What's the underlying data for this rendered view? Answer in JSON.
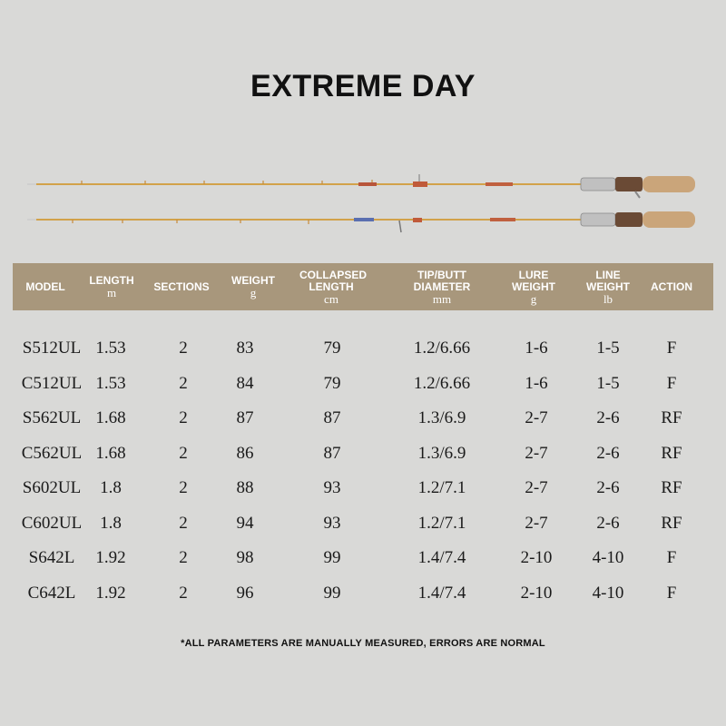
{
  "title": "EXTREME DAY",
  "colors": {
    "background": "#d9d9d7",
    "header_bg": "#a8977c",
    "blank": "#d2a24a",
    "cork": "#caa57a",
    "reel_seat": "#c0c0c0"
  },
  "rod_image": {
    "icon": "fishing-rod-icon",
    "count": 2
  },
  "table": {
    "headers": [
      {
        "label": "MODEL",
        "unit": ""
      },
      {
        "label": "LENGTH",
        "unit": "m"
      },
      {
        "label": "SECTIONS",
        "unit": ""
      },
      {
        "label": "WEIGHT",
        "unit": "g"
      },
      {
        "label": "COLLAPSED LENGTH",
        "unit": "cm"
      },
      {
        "label": "TIP/BUTT DIAMETER",
        "unit": "mm"
      },
      {
        "label": "LURE WEIGHT",
        "unit": "g"
      },
      {
        "label": "LINE WEIGHT",
        "unit": "lb"
      },
      {
        "label": "ACTION",
        "unit": ""
      }
    ],
    "rows": [
      [
        "S512UL",
        "1.53",
        "2",
        "83",
        "79",
        "1.2/6.66",
        "1-6",
        "1-5",
        "F"
      ],
      [
        "C512UL",
        "1.53",
        "2",
        "84",
        "79",
        "1.2/6.66",
        "1-6",
        "1-5",
        "F"
      ],
      [
        "S562UL",
        "1.68",
        "2",
        "87",
        "87",
        "1.3/6.9",
        "2-7",
        "2-6",
        "RF"
      ],
      [
        "C562UL",
        "1.68",
        "2",
        "86",
        "87",
        "1.3/6.9",
        "2-7",
        "2-6",
        "RF"
      ],
      [
        "S602UL",
        "1.8",
        "2",
        "88",
        "93",
        "1.2/7.1",
        "2-7",
        "2-6",
        "RF"
      ],
      [
        "C602UL",
        "1.8",
        "2",
        "94",
        "93",
        "1.2/7.1",
        "2-7",
        "2-6",
        "RF"
      ],
      [
        "S642L",
        "1.92",
        "2",
        "98",
        "99",
        "1.4/7.4",
        "2-10",
        "4-10",
        "F"
      ],
      [
        "C642L",
        "1.92",
        "2",
        "96",
        "99",
        "1.4/7.4",
        "2-10",
        "4-10",
        "F"
      ]
    ]
  },
  "footnote": "*ALL PARAMETERS ARE MANUALLY MEASURED, ERRORS ARE NORMAL"
}
